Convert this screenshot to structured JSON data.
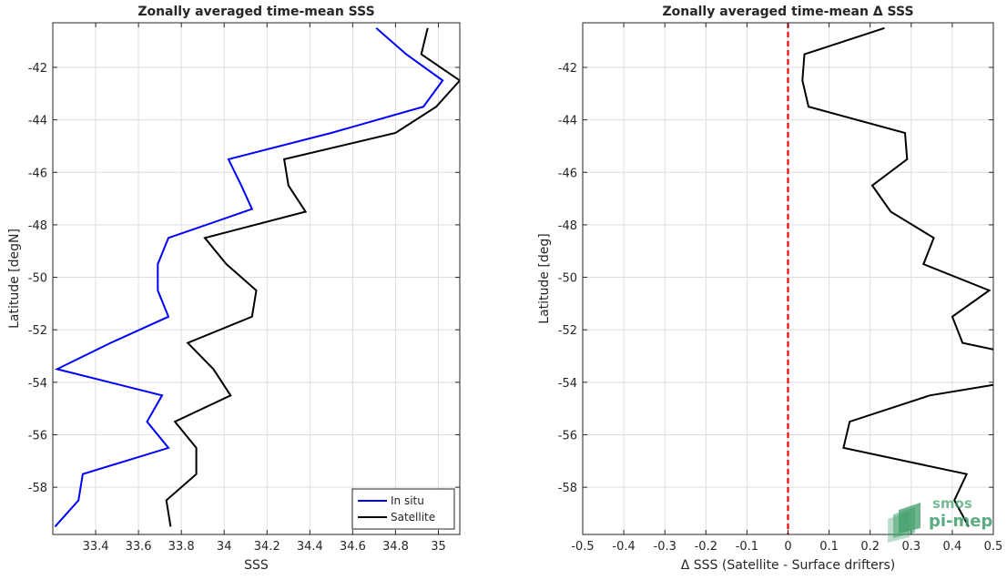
{
  "chart_data": [
    {
      "type": "line",
      "title": "Zonally averaged time-mean SSS",
      "xlabel": "SSS",
      "ylabel": "Latitude [degN]",
      "xlim": [
        33.2,
        35.1
      ],
      "ylim": [
        -59.8,
        -40.3
      ],
      "xticks": [
        "33.4",
        "33.6",
        "33.8",
        "34",
        "34.2",
        "34.4",
        "34.6",
        "34.8",
        "35"
      ],
      "xtick_values": [
        33.4,
        33.6,
        33.8,
        34.0,
        34.2,
        34.4,
        34.6,
        34.8,
        35.0
      ],
      "yticks": [
        "-42",
        "-44",
        "-46",
        "-48",
        "-50",
        "-52",
        "-54",
        "-56",
        "-58"
      ],
      "ytick_values": [
        -42,
        -44,
        -46,
        -48,
        -50,
        -52,
        -54,
        -56,
        -58
      ],
      "grid": true,
      "legend_position": "bottom-right",
      "series": [
        {
          "name": "In situ",
          "color": "#0000ff",
          "points": [
            [
              34.71,
              -40.5
            ],
            [
              34.85,
              -41.5
            ],
            [
              35.02,
              -42.5
            ],
            [
              34.93,
              -43.5
            ],
            [
              34.5,
              -44.5
            ],
            [
              34.02,
              -45.5
            ],
            [
              34.08,
              -46.5
            ],
            [
              34.13,
              -47.4
            ],
            [
              33.74,
              -48.5
            ],
            [
              33.69,
              -49.5
            ],
            [
              33.69,
              -50.5
            ],
            [
              33.74,
              -51.5
            ],
            [
              33.47,
              -52.5
            ],
            [
              33.22,
              -53.5
            ],
            [
              33.71,
              -54.5
            ],
            [
              33.64,
              -55.5
            ],
            [
              33.74,
              -56.5
            ],
            [
              33.34,
              -57.5
            ],
            [
              33.32,
              -58.5
            ],
            [
              33.21,
              -59.5
            ]
          ]
        },
        {
          "name": "Satellite",
          "color": "#000000",
          "points": [
            [
              34.95,
              -40.5
            ],
            [
              34.92,
              -41.5
            ],
            [
              35.1,
              -42.5
            ],
            [
              34.99,
              -43.5
            ],
            [
              34.8,
              -44.5
            ],
            [
              34.28,
              -45.5
            ],
            [
              34.3,
              -46.5
            ],
            [
              34.38,
              -47.5
            ],
            [
              33.91,
              -48.5
            ],
            [
              34.01,
              -49.5
            ],
            [
              34.15,
              -50.5
            ],
            [
              34.13,
              -51.5
            ],
            [
              33.83,
              -52.5
            ],
            [
              33.95,
              -53.5
            ],
            [
              34.03,
              -54.5
            ],
            [
              33.77,
              -55.5
            ],
            [
              33.87,
              -56.5
            ],
            [
              33.87,
              -57.5
            ],
            [
              33.73,
              -58.5
            ],
            [
              33.75,
              -59.5
            ]
          ]
        }
      ]
    },
    {
      "type": "line",
      "title": "Zonally averaged time-mean Δ SSS",
      "xlabel": "Δ SSS (Satellite - Surface drifters)",
      "ylabel": "Latitude [deg]",
      "xlim": [
        -0.5,
        0.5
      ],
      "ylim": [
        -59.8,
        -40.3
      ],
      "xticks": [
        "-0.5",
        "-0.4",
        "-0.3",
        "-0.2",
        "-0.1",
        "0",
        "0.1",
        "0.2",
        "0.3",
        "0.4",
        "0.5"
      ],
      "xtick_values": [
        -0.5,
        -0.4,
        -0.3,
        -0.2,
        -0.1,
        0,
        0.1,
        0.2,
        0.3,
        0.4,
        0.5
      ],
      "yticks": [
        "-42",
        "-44",
        "-46",
        "-48",
        "-50",
        "-52",
        "-54",
        "-56",
        "-58"
      ],
      "ytick_values": [
        -42,
        -44,
        -46,
        -48,
        -50,
        -52,
        -54,
        -56,
        -58
      ],
      "grid": true,
      "reference_line": {
        "x": 0,
        "color": "#ff0000",
        "style": "dashed"
      },
      "series": [
        {
          "color": "#000000",
          "points": [
            [
              0.235,
              -40.5
            ],
            [
              0.04,
              -41.5
            ],
            [
              0.035,
              -42.5
            ],
            [
              0.05,
              -43.5
            ],
            [
              0.285,
              -44.5
            ],
            [
              0.29,
              -45.5
            ],
            [
              0.205,
              -46.5
            ],
            [
              0.25,
              -47.5
            ],
            [
              0.355,
              -48.5
            ],
            [
              0.33,
              -49.5
            ],
            [
              0.49,
              -50.5
            ],
            [
              0.4,
              -51.5
            ],
            [
              0.425,
              -52.5
            ],
            [
              0.5,
              -52.75
            ]
          ]
        },
        {
          "color": "#000000",
          "points": [
            [
              0.5,
              -54.1
            ],
            [
              0.345,
              -54.5
            ],
            [
              0.15,
              -55.5
            ],
            [
              0.135,
              -56.5
            ],
            [
              0.435,
              -57.5
            ],
            [
              0.405,
              -58.5
            ],
            [
              0.44,
              -59.5
            ]
          ]
        }
      ]
    }
  ],
  "logo": {
    "line1": "smos",
    "line2": "pi-mep",
    "color": "#3f9e6a"
  }
}
